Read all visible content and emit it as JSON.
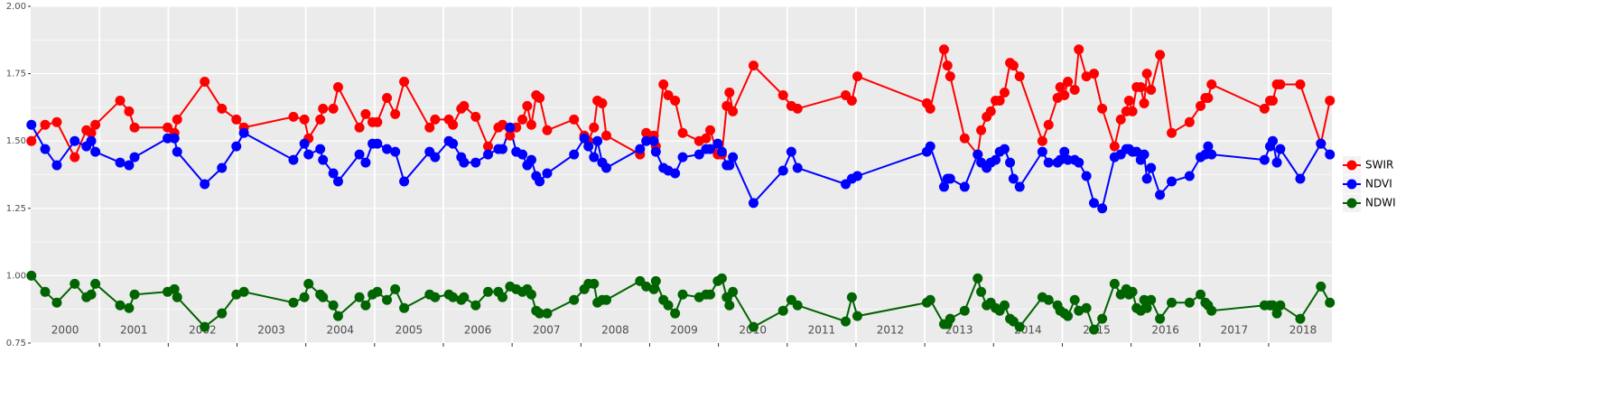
{
  "chart_data": {
    "type": "line",
    "x": [
      2000.01,
      2000.21,
      2000.38,
      2000.64,
      2000.81,
      2000.88,
      2000.94,
      2001.3,
      2001.43,
      2001.51,
      2001.99,
      2002.09,
      2002.13,
      2002.53,
      2002.78,
      2002.99,
      2003.1,
      2003.82,
      2003.98,
      2004.04,
      2004.21,
      2004.25,
      2004.4,
      2004.47,
      2004.78,
      2004.87,
      2004.97,
      2005.04,
      2005.18,
      2005.3,
      2005.43,
      2005.8,
      2005.88,
      2006.08,
      2006.14,
      2006.26,
      2006.3,
      2006.47,
      2006.65,
      2006.8,
      2006.86,
      2006.97,
      2007.06,
      2007.15,
      2007.22,
      2007.28,
      2007.35,
      2007.4,
      2007.51,
      2007.9,
      2008.05,
      2008.11,
      2008.19,
      2008.24,
      2008.31,
      2008.37,
      2008.86,
      2008.95,
      2009.06,
      2009.09,
      2009.2,
      2009.27,
      2009.37,
      2009.48,
      2009.72,
      2009.82,
      2009.88,
      2009.99,
      2010.05,
      2010.12,
      2010.16,
      2010.21,
      2010.51,
      2010.94,
      2011.06,
      2011.15,
      2011.85,
      2011.94,
      2012.02,
      2013.03,
      2013.08,
      2013.28,
      2013.33,
      2013.37,
      2013.58,
      2013.77,
      2013.82,
      2013.9,
      2013.96,
      2014.03,
      2014.09,
      2014.16,
      2014.24,
      2014.29,
      2014.38,
      2014.71,
      2014.8,
      2014.93,
      2014.97,
      2015.03,
      2015.08,
      2015.18,
      2015.24,
      2015.35,
      2015.46,
      2015.58,
      2015.76,
      2015.85,
      2015.93,
      2015.97,
      2016.02,
      2016.08,
      2016.14,
      2016.19,
      2016.23,
      2016.29,
      2016.42,
      2016.59,
      2016.85,
      2017.01,
      2017.08,
      2017.12,
      2017.17,
      2017.94,
      2018.02,
      2018.06,
      2018.12,
      2018.17,
      2018.46,
      2018.76,
      2018.89
    ],
    "series": [
      {
        "name": "SWIR",
        "color": "#ff0000",
        "values": [
          1.5,
          1.56,
          1.57,
          1.44,
          1.54,
          1.53,
          1.56,
          1.65,
          1.61,
          1.55,
          1.55,
          1.53,
          1.58,
          1.72,
          1.62,
          1.58,
          1.55,
          1.59,
          1.58,
          1.51,
          1.58,
          1.62,
          1.62,
          1.7,
          1.55,
          1.6,
          1.57,
          1.57,
          1.66,
          1.6,
          1.72,
          1.55,
          1.58,
          1.58,
          1.56,
          1.62,
          1.63,
          1.59,
          1.48,
          1.55,
          1.56,
          1.52,
          1.55,
          1.58,
          1.63,
          1.56,
          1.67,
          1.66,
          1.54,
          1.58,
          1.52,
          1.5,
          1.55,
          1.65,
          1.64,
          1.52,
          1.45,
          1.53,
          1.52,
          1.48,
          1.71,
          1.67,
          1.65,
          1.53,
          1.5,
          1.51,
          1.54,
          1.45,
          1.45,
          1.63,
          1.68,
          1.61,
          1.78,
          1.67,
          1.63,
          1.62,
          1.67,
          1.65,
          1.74,
          1.64,
          1.62,
          1.84,
          1.78,
          1.74,
          1.51,
          1.45,
          1.54,
          1.59,
          1.61,
          1.65,
          1.65,
          1.68,
          1.79,
          1.78,
          1.74,
          1.5,
          1.56,
          1.66,
          1.7,
          1.67,
          1.72,
          1.69,
          1.84,
          1.74,
          1.75,
          1.62,
          1.48,
          1.58,
          1.61,
          1.65,
          1.61,
          1.7,
          1.7,
          1.64,
          1.75,
          1.69,
          1.82,
          1.53,
          1.57,
          1.63,
          1.66,
          1.66,
          1.71,
          1.62,
          1.65,
          1.65,
          1.71,
          1.71,
          1.71,
          1.49,
          1.65
        ]
      },
      {
        "name": "NDVI",
        "color": "#0000ff",
        "values": [
          1.56,
          1.47,
          1.41,
          1.5,
          1.48,
          1.5,
          1.46,
          1.42,
          1.41,
          1.44,
          1.51,
          1.51,
          1.46,
          1.34,
          1.4,
          1.48,
          1.53,
          1.43,
          1.49,
          1.45,
          1.47,
          1.43,
          1.38,
          1.35,
          1.45,
          1.42,
          1.49,
          1.49,
          1.47,
          1.46,
          1.35,
          1.46,
          1.44,
          1.5,
          1.49,
          1.44,
          1.42,
          1.42,
          1.45,
          1.47,
          1.47,
          1.55,
          1.46,
          1.45,
          1.41,
          1.43,
          1.37,
          1.35,
          1.38,
          1.45,
          1.51,
          1.48,
          1.44,
          1.5,
          1.42,
          1.4,
          1.47,
          1.5,
          1.5,
          1.46,
          1.4,
          1.39,
          1.38,
          1.44,
          1.45,
          1.47,
          1.47,
          1.49,
          1.46,
          1.41,
          1.41,
          1.44,
          1.27,
          1.39,
          1.46,
          1.4,
          1.34,
          1.36,
          1.37,
          1.46,
          1.48,
          1.33,
          1.36,
          1.36,
          1.33,
          1.45,
          1.42,
          1.4,
          1.42,
          1.43,
          1.46,
          1.47,
          1.42,
          1.36,
          1.33,
          1.46,
          1.42,
          1.42,
          1.43,
          1.46,
          1.43,
          1.43,
          1.42,
          1.37,
          1.27,
          1.25,
          1.44,
          1.45,
          1.47,
          1.47,
          1.46,
          1.46,
          1.43,
          1.45,
          1.36,
          1.4,
          1.3,
          1.35,
          1.37,
          1.44,
          1.45,
          1.48,
          1.45,
          1.43,
          1.48,
          1.5,
          1.42,
          1.47,
          1.36,
          1.49,
          1.45
        ]
      },
      {
        "name": "NDWI",
        "color": "#006400",
        "values": [
          1.0,
          0.94,
          0.9,
          0.97,
          0.92,
          0.93,
          0.97,
          0.89,
          0.88,
          0.93,
          0.94,
          0.95,
          0.92,
          0.81,
          0.86,
          0.93,
          0.94,
          0.9,
          0.92,
          0.97,
          0.93,
          0.92,
          0.89,
          0.85,
          0.92,
          0.89,
          0.93,
          0.94,
          0.91,
          0.95,
          0.88,
          0.93,
          0.92,
          0.93,
          0.92,
          0.91,
          0.92,
          0.89,
          0.94,
          0.94,
          0.92,
          0.96,
          0.95,
          0.94,
          0.95,
          0.93,
          0.87,
          0.86,
          0.86,
          0.91,
          0.95,
          0.97,
          0.97,
          0.9,
          0.91,
          0.91,
          0.98,
          0.96,
          0.95,
          0.98,
          0.91,
          0.89,
          0.86,
          0.93,
          0.92,
          0.93,
          0.93,
          0.98,
          0.99,
          0.92,
          0.89,
          0.94,
          0.81,
          0.87,
          0.91,
          0.89,
          0.83,
          0.92,
          0.85,
          0.9,
          0.91,
          0.82,
          0.82,
          0.84,
          0.87,
          0.99,
          0.94,
          0.89,
          0.9,
          0.88,
          0.87,
          0.89,
          0.84,
          0.83,
          0.81,
          0.92,
          0.91,
          0.89,
          0.87,
          0.86,
          0.85,
          0.91,
          0.87,
          0.88,
          0.8,
          0.84,
          0.97,
          0.93,
          0.95,
          0.93,
          0.94,
          0.88,
          0.87,
          0.91,
          0.88,
          0.91,
          0.84,
          0.9,
          0.9,
          0.93,
          0.9,
          0.89,
          0.87,
          0.89,
          0.89,
          0.89,
          0.86,
          0.89,
          0.84,
          0.96,
          0.9
        ]
      }
    ],
    "xlim": [
      2000,
      2018.92
    ],
    "ylim": [
      0.75,
      2.0
    ],
    "yticks": [
      {
        "value": 0.75,
        "label": "0.75"
      },
      {
        "value": 1.0,
        "label": "1.00"
      },
      {
        "value": 1.25,
        "label": "1.25"
      },
      {
        "value": 1.5,
        "label": "1.50"
      },
      {
        "value": 1.75,
        "label": "1.75"
      },
      {
        "value": 2.0,
        "label": "2.00"
      }
    ],
    "xticks": [
      {
        "value": 2000.5,
        "label": "2000"
      },
      {
        "value": 2001.5,
        "label": "2001"
      },
      {
        "value": 2002.5,
        "label": "2002"
      },
      {
        "value": 2003.5,
        "label": "2003"
      },
      {
        "value": 2004.5,
        "label": "2004"
      },
      {
        "value": 2005.5,
        "label": "2005"
      },
      {
        "value": 2006.5,
        "label": "2006"
      },
      {
        "value": 2007.5,
        "label": "2007"
      },
      {
        "value": 2008.5,
        "label": "2008"
      },
      {
        "value": 2009.5,
        "label": "2009"
      },
      {
        "value": 2010.5,
        "label": "2010"
      },
      {
        "value": 2011.5,
        "label": "2011"
      },
      {
        "value": 2012.5,
        "label": "2012"
      },
      {
        "value": 2013.5,
        "label": "2013"
      },
      {
        "value": 2014.5,
        "label": "2014"
      },
      {
        "value": 2015.5,
        "label": "2015"
      },
      {
        "value": 2016.5,
        "label": "2016"
      },
      {
        "value": 2017.5,
        "label": "2017"
      },
      {
        "value": 2018.5,
        "label": "2018"
      }
    ],
    "xbreaks": [
      2001,
      2002,
      2003,
      2004,
      2005,
      2006,
      2007,
      2008,
      2009,
      2010,
      2011,
      2012,
      2013,
      2014,
      2015,
      2016,
      2017,
      2018
    ],
    "grid": true,
    "legend": "right"
  }
}
